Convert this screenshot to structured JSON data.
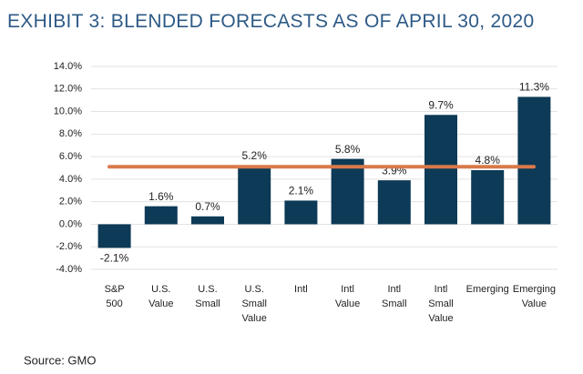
{
  "chart_data": {
    "type": "bar",
    "title": "EXHIBIT 3: BLENDED FORECASTS AS OF APRIL 30, 2020",
    "source": "Source: GMO",
    "categories": [
      "S&P 500",
      "U.S. Value",
      "U.S. Small",
      "U.S. Small Value",
      "Intl",
      "Intl Value",
      "Intl Small",
      "Intl Small Value",
      "Emerging",
      "Emerging Value"
    ],
    "values": [
      -2.1,
      1.6,
      0.7,
      5.2,
      2.1,
      5.8,
      3.9,
      9.7,
      4.8,
      11.3
    ],
    "value_labels": [
      "-2.1%",
      "1.6%",
      "0.7%",
      "5.2%",
      "2.1%",
      "5.8%",
      "3.9%",
      "9.7%",
      "4.8%",
      "11.3%"
    ],
    "color": "#0d3a56",
    "reference_line": {
      "value": 5.1,
      "color": "#d9794a"
    },
    "ylim": [
      -4,
      14
    ],
    "yticks": [
      {
        "value": -4,
        "label": "-4.0%"
      },
      {
        "value": -2,
        "label": "-2.0%"
      },
      {
        "value": 0,
        "label": "0.0%"
      },
      {
        "value": 2,
        "label": "2.0%"
      },
      {
        "value": 4,
        "label": "4.0%"
      },
      {
        "value": 6,
        "label": "6.0%"
      },
      {
        "value": 8,
        "label": "8.0%"
      },
      {
        "value": 10,
        "label": "10.0%"
      },
      {
        "value": 12,
        "label": "12.0%"
      },
      {
        "value": 14,
        "label": "14.0%"
      }
    ],
    "grid": true
  }
}
